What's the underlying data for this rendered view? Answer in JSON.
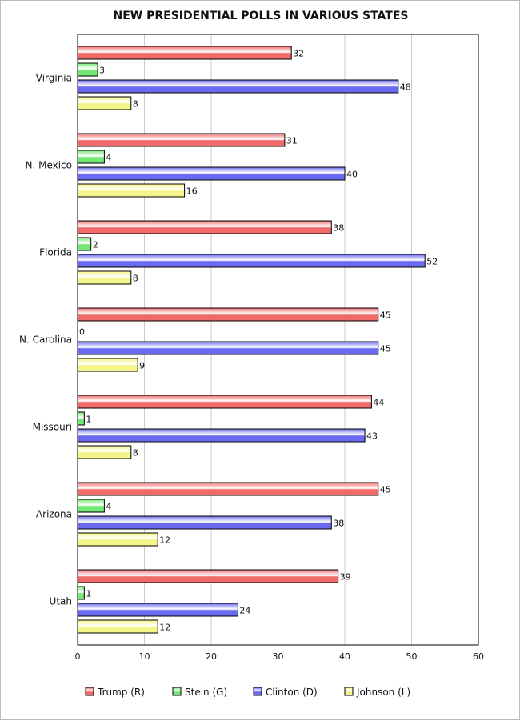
{
  "chart_data": {
    "type": "bar",
    "orientation": "horizontal",
    "title": "NEW PRESIDENTIAL POLLS IN VARIOUS STATES",
    "categories": [
      "Virginia",
      "N. Mexico",
      "Florida",
      "N. Carolina",
      "Missouri",
      "Arizona",
      "Utah"
    ],
    "series": [
      {
        "name": "Trump (R)",
        "color": "#f06a6a",
        "values": [
          32,
          31,
          38,
          45,
          44,
          45,
          39
        ]
      },
      {
        "name": "Stein (G)",
        "color": "#74e874",
        "values": [
          3,
          4,
          2,
          0,
          1,
          4,
          1
        ]
      },
      {
        "name": "Clinton (D)",
        "color": "#6a6af0",
        "values": [
          48,
          40,
          52,
          45,
          43,
          38,
          24
        ]
      },
      {
        "name": "Johnson (L)",
        "color": "#f4f48a",
        "values": [
          8,
          16,
          8,
          9,
          8,
          12,
          12
        ]
      }
    ],
    "xlim": [
      0,
      60
    ],
    "xticks": [
      0,
      10,
      20,
      30,
      40,
      50,
      60
    ],
    "grid": true,
    "legend": "bottom"
  }
}
